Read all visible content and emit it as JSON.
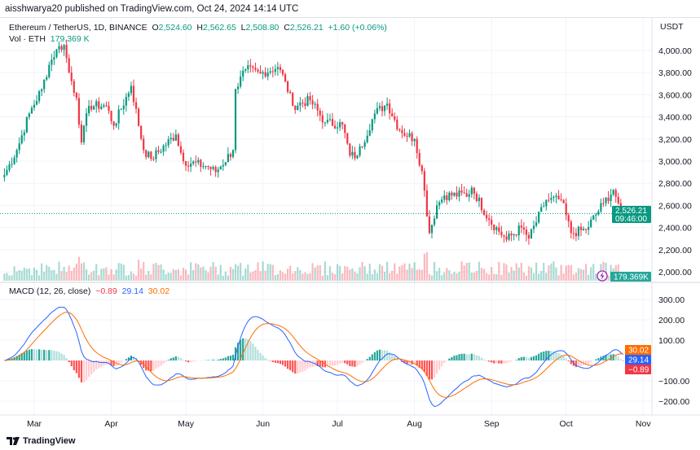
{
  "published": "aisshwarya20 published on TradingView.com, Oct 24, 2024 14:14 UTC",
  "legend": {
    "symbol": "Ethereum / TetherUS, 1D, BINANCE",
    "o_label": "O",
    "o": "2,524.60",
    "h_label": "H",
    "h": "2,562.65",
    "l_label": "L",
    "l": "2,508.80",
    "c_label": "C",
    "c": "2,526.21",
    "change": "+1.60 (+0.06%)",
    "vol_label": "Vol · ETH",
    "vol": "179.369 K"
  },
  "macd_legend": {
    "label": "MACD (12, 26, close)",
    "hist": "−0.89",
    "macd": "29.14",
    "signal": "30.02"
  },
  "currency": "USDT",
  "price_badge": {
    "price": "2,526.21",
    "countdown": "09:46:00"
  },
  "vol_badge": "179.369K",
  "macd_badges": {
    "signal": "30.02",
    "macd": "29.14",
    "hist": "−0.89"
  },
  "footer": "TradingView",
  "colors": {
    "up": "#089981",
    "down": "#f23645",
    "macd": "#2962ff",
    "signal": "#ff6d00",
    "hist_up": "#26a69a",
    "hist_up_light": "#b2dfdb",
    "hist_down": "#ff5252",
    "hist_down_light": "#ffcdd2"
  },
  "chart_data": {
    "type": "candlestick",
    "price_ticks": [
      "4,000.00",
      "3,800.00",
      "3,600.00",
      "3,400.00",
      "3,200.00",
      "3,000.00",
      "2,800.00",
      "2,600.00",
      "2,400.00",
      "2,200.00",
      "2,000.00"
    ],
    "price_tick_values": [
      4000,
      3800,
      3600,
      3400,
      3200,
      3000,
      2800,
      2600,
      2400,
      2200,
      2000
    ],
    "macd_ticks": [
      "300.00",
      "200.00",
      "100.00",
      "−100.00",
      "−200.00"
    ],
    "macd_tick_values": [
      300,
      200,
      100,
      -100,
      -200
    ],
    "x_ticks": [
      "Mar",
      "Apr",
      "May",
      "Jun",
      "Jul",
      "Aug",
      "Sep",
      "Oct",
      "Nov"
    ],
    "x_tick_dates": [
      "2024-03-01",
      "2024-04-01",
      "2024-05-01",
      "2024-06-01",
      "2024-07-01",
      "2024-08-01",
      "2024-09-01",
      "2024-10-01",
      "2024-11-01"
    ],
    "approx_closes": [
      [
        "2024-02-18",
        2875
      ],
      [
        "2024-02-23",
        3100
      ],
      [
        "2024-02-28",
        3430
      ],
      [
        "2024-03-04",
        3650
      ],
      [
        "2024-03-07",
        3870
      ],
      [
        "2024-03-10",
        4010
      ],
      [
        "2024-03-13",
        4050
      ],
      [
        "2024-03-15",
        3800
      ],
      [
        "2024-03-18",
        3570
      ],
      [
        "2024-03-20",
        3170
      ],
      [
        "2024-03-23",
        3500
      ],
      [
        "2024-03-30",
        3500
      ],
      [
        "2024-04-02",
        3320
      ],
      [
        "2024-04-09",
        3680
      ],
      [
        "2024-04-14",
        3100
      ],
      [
        "2024-04-17",
        3020
      ],
      [
        "2024-04-27",
        3240
      ],
      [
        "2024-04-30",
        3000
      ],
      [
        "2024-05-10",
        2950
      ],
      [
        "2024-05-13",
        2900
      ],
      [
        "2024-05-20",
        3100
      ],
      [
        "2024-05-21",
        3650
      ],
      [
        "2024-05-25",
        3830
      ],
      [
        "2024-05-31",
        3790
      ],
      [
        "2024-06-07",
        3850
      ],
      [
        "2024-06-10",
        3720
      ],
      [
        "2024-06-13",
        3500
      ],
      [
        "2024-06-20",
        3550
      ],
      [
        "2024-06-26",
        3350
      ],
      [
        "2024-07-03",
        3330
      ],
      [
        "2024-07-06",
        3050
      ],
      [
        "2024-07-09",
        3050
      ],
      [
        "2024-07-16",
        3430
      ],
      [
        "2024-07-21",
        3520
      ],
      [
        "2024-07-26",
        3280
      ],
      [
        "2024-08-01",
        3200
      ],
      [
        "2024-08-04",
        2910
      ],
      [
        "2024-08-07",
        2350
      ],
      [
        "2024-08-10",
        2600
      ],
      [
        "2024-08-13",
        2690
      ],
      [
        "2024-08-23",
        2700
      ],
      [
        "2024-08-24",
        2760
      ],
      [
        "2024-08-31",
        2470
      ],
      [
        "2024-09-07",
        2290
      ],
      [
        "2024-09-13",
        2400
      ],
      [
        "2024-09-16",
        2300
      ],
      [
        "2024-09-23",
        2650
      ],
      [
        "2024-09-29",
        2650
      ],
      [
        "2024-10-03",
        2350
      ],
      [
        "2024-10-09",
        2380
      ],
      [
        "2024-10-16",
        2620
      ],
      [
        "2024-10-20",
        2740
      ],
      [
        "2024-10-22",
        2620
      ],
      [
        "2024-10-23",
        2520
      ],
      [
        "2024-10-24",
        2526.21
      ]
    ],
    "last_candle": {
      "o": 2524.6,
      "h": 2562.65,
      "l": 2508.8,
      "c": 2526.21
    }
  }
}
